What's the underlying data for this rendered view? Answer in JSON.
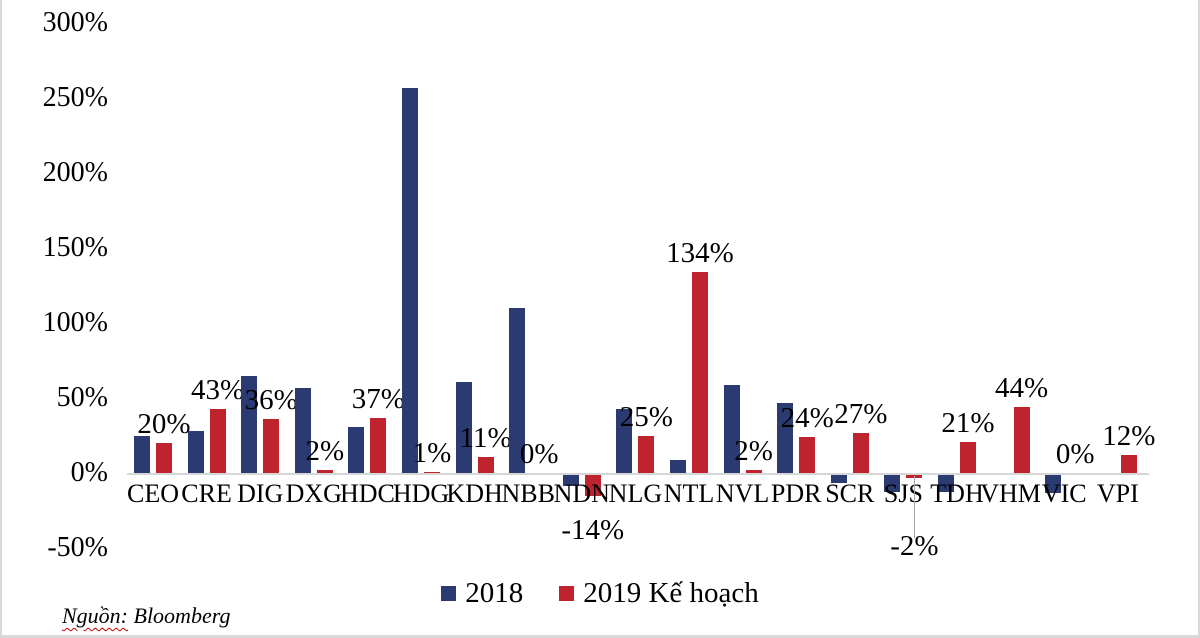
{
  "chart_data": {
    "type": "bar",
    "title": "",
    "categories": [
      "CEO",
      "CRE",
      "DIG",
      "DXG",
      "HDC",
      "HDG",
      "KDH",
      "NBB",
      "NDN",
      "NLG",
      "NTL",
      "NVL",
      "PDR",
      "SCR",
      "SJS",
      "TDH",
      "VHM",
      "VIC",
      "VPI"
    ],
    "series": [
      {
        "name": "2018",
        "color": "#2b3a70",
        "values": [
          25,
          28,
          65,
          57,
          31,
          257,
          61,
          110,
          -7,
          43,
          9,
          59,
          47,
          -5,
          -11,
          -11,
          0,
          -12,
          0
        ]
      },
      {
        "name": "2019 Kế hoạch",
        "color": "#bf232e",
        "values": [
          20,
          43,
          36,
          2,
          37,
          1,
          11,
          0,
          -14,
          25,
          134,
          2,
          24,
          27,
          -2,
          21,
          44,
          0,
          12
        ],
        "labels": [
          "20%",
          "43%",
          "36%",
          "2%",
          "37%",
          "1%",
          "11%",
          "0%",
          "-14%",
          "25%",
          "134%",
          "2%",
          "24%",
          "27%",
          "-2%",
          "21%",
          "44%",
          "0%",
          "12%"
        ]
      }
    ],
    "y_axis": {
      "ticks": [
        {
          "label": "300%",
          "value": 300
        },
        {
          "label": "250%",
          "value": 250
        },
        {
          "label": "200%",
          "value": 200
        },
        {
          "label": "150%",
          "value": 150
        },
        {
          "label": "100%",
          "value": 100
        },
        {
          "label": "50%",
          "value": 50
        },
        {
          "label": "0%",
          "value": 0
        },
        {
          "label": "-50%",
          "value": -50
        }
      ],
      "min": -50,
      "max": 300,
      "grid": false
    },
    "legend": {
      "position": "bottom",
      "entries": [
        "2018",
        "2019 Kế hoạch"
      ]
    },
    "label_placement": {
      "NDN": {
        "below_dy": 57
      },
      "SJS": {
        "below_dy": 73,
        "leader": true
      }
    },
    "colors": {
      "axis_line": "#d6d6d6",
      "frame": "#d9d9d9",
      "leader_line": "#a6a6a6",
      "text": "#000000"
    }
  },
  "footer": {
    "source_prefix": "Nguồn:",
    "source_text": "Bloomberg"
  }
}
